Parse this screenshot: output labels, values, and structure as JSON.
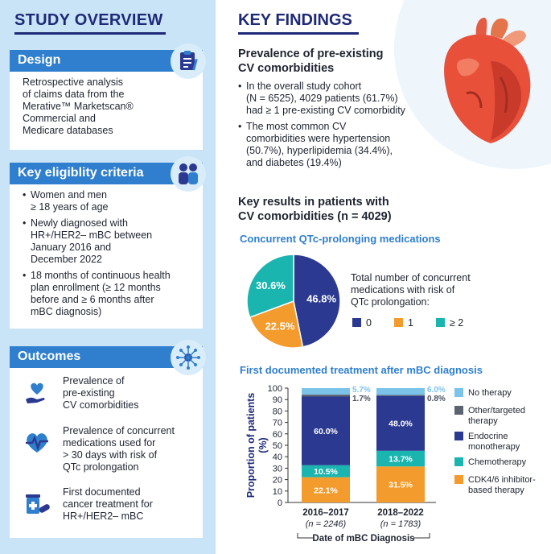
{
  "study_overview": {
    "title": "STUDY OVERVIEW",
    "design": {
      "heading": "Design",
      "text_lines": [
        "Retrospective analysis",
        "of claims data from the",
        "Merative™ Marketscan®",
        "Commercial and",
        "Medicare databases"
      ],
      "icon": "clipboard-icon"
    },
    "criteria": {
      "heading": "Key eligiblity criteria",
      "icon": "people-icon",
      "bullets": [
        [
          "Women and men",
          "≥ 18 years of age"
        ],
        [
          "Newly diagnosed with",
          "HR+/HER2– mBC between",
          "January 2016 and",
          "December 2022"
        ],
        [
          "18 months of continuous health",
          "plan enrollment (≥ 12 months",
          "before and ≥ 6 months after",
          "mBC diagnosis)"
        ]
      ]
    },
    "outcomes": {
      "heading": "Outcomes",
      "icon": "network-icon",
      "items": [
        {
          "icon": "heart-hand-icon",
          "lines": [
            "Prevalence of",
            "pre-existing",
            "CV comorbidities"
          ]
        },
        {
          "icon": "heartbeat-icon",
          "lines": [
            "Prevalence of concurrent",
            "medications used for",
            "> 30 days with risk of",
            "QTc prolongation"
          ]
        },
        {
          "icon": "pills-icon",
          "lines": [
            "First documented",
            "cancer treatment for",
            "HR+/HER2– mBC"
          ]
        }
      ]
    }
  },
  "key_findings": {
    "title": "KEY FINDINGS",
    "prevalence": {
      "heading_lines": [
        "Prevalence of pre-existing",
        "CV comorbidities"
      ],
      "bullets": [
        [
          "In the overall study cohort",
          "(N = 6525), 4029 patients (61.7%)",
          "had ≥ 1 pre-existing CV comorbidity"
        ],
        [
          "The most common CV",
          "comorbidities were hypertension",
          "(50.7%), hyperlipidemia (34.4%),",
          "and diabetes (19.4%)"
        ]
      ]
    },
    "key_results": {
      "heading_line1": "Key results in patients with",
      "heading_line2": "CV comorbidities (n = 4029)"
    },
    "qtc_title": "Concurrent QTc-prolonging medications",
    "pie_legend_lines": [
      "Total number of concurrent",
      "medications with risk of",
      "QTc prolongation:"
    ],
    "treatment_title": "First documented treatment after mBC diagnosis"
  },
  "chart_data": [
    {
      "type": "pie",
      "title": "Concurrent QTc-prolonging medications",
      "legend_title": "Total number of concurrent medications with risk of QTc prolongation:",
      "slices": [
        {
          "label": "0",
          "value": 46.8,
          "display": "46.8%",
          "color": "#2b3990"
        },
        {
          "label": "1",
          "value": 22.5,
          "display": "22.5%",
          "color": "#f39c2d"
        },
        {
          "label": "≥ 2",
          "value": 30.6,
          "display": "30.6%",
          "color": "#1bb5b0"
        }
      ]
    },
    {
      "type": "bar",
      "stacked": true,
      "title": "First documented treatment after mBC diagnosis",
      "ylabel": "Proportion of patients (%)",
      "xlabel": "Date of mBC Diagnosis",
      "ylim": [
        0,
        100
      ],
      "yticks": [
        0,
        10,
        20,
        30,
        40,
        50,
        60,
        70,
        80,
        90,
        100
      ],
      "categories": [
        "2016–2017",
        "2018–2022"
      ],
      "category_notes": [
        "(n = 2246)",
        "(n = 1783)"
      ],
      "series": [
        {
          "name": "CDK4/6 inhibitor-based therapy",
          "color": "#f39c2d",
          "values": [
            22.1,
            31.5
          ],
          "labels": [
            "22.1%",
            "31.5%"
          ]
        },
        {
          "name": "Chemotherapy",
          "color": "#1bb5b0",
          "values": [
            10.5,
            13.7
          ],
          "labels": [
            "10.5%",
            "13.7%"
          ]
        },
        {
          "name": "Endocrine monotherapy",
          "color": "#2b3990",
          "values": [
            60.0,
            48.0
          ],
          "labels": [
            "60.0%",
            "48.0%"
          ]
        },
        {
          "name": "Other/targeted therapy",
          "color": "#5c6270",
          "values": [
            1.7,
            0.8
          ],
          "labels": [
            "1.7%",
            "0.8%"
          ]
        },
        {
          "name": "No therapy",
          "color": "#7cc3ea",
          "values": [
            5.7,
            6.0
          ],
          "labels": [
            "5.7%",
            "6.0%"
          ]
        }
      ],
      "legend": [
        {
          "lines": [
            "No therapy"
          ],
          "color": "#7cc3ea"
        },
        {
          "lines": [
            "Other/targeted",
            "therapy"
          ],
          "color": "#5c6270"
        },
        {
          "lines": [
            "Endocrine",
            "monotherapy"
          ],
          "color": "#2b3990"
        },
        {
          "lines": [
            "Chemotherapy"
          ],
          "color": "#1bb5b0"
        },
        {
          "lines": [
            "CDK4/6 inhibitor-",
            "based therapy"
          ],
          "color": "#f39c2d"
        }
      ]
    }
  ]
}
